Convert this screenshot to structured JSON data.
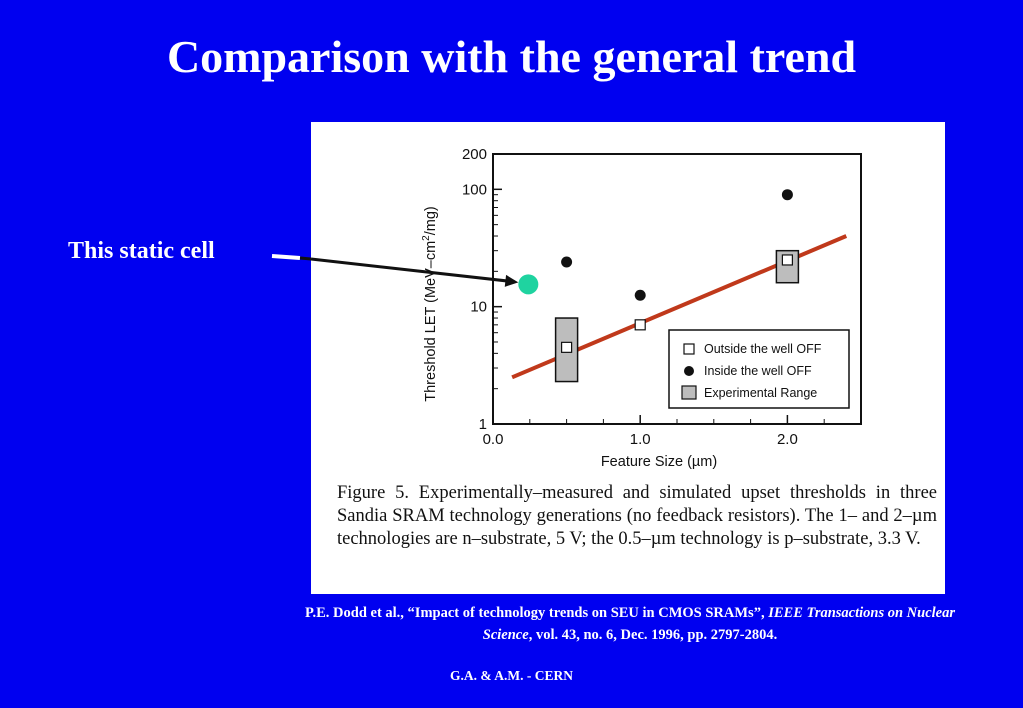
{
  "slide": {
    "title": "Comparison with the general trend",
    "annotation": "This static cell",
    "footer": "G.A. & A.M.  -  CERN"
  },
  "citation": {
    "part1": "P.E. Dodd et al., “Impact of technology trends on SEU in CMOS SRAMs”, ",
    "journal": "IEEE Transactions on Nuclear Science",
    "part2": ", vol. 43, no. 6, Dec. 1996, pp. 2797-2804."
  },
  "caption": "Figure 5. Experimentally–measured and simulated upset thresholds in three Sandia SRAM technology generations (no feedback resistors). The 1– and 2–µm technologies are n–substrate, 5 V; the 0.5–µm technology is p–substrate, 3.3 V.",
  "colors": {
    "background": "#0000f0",
    "trend_line": "#c0391b",
    "highlight_point": "#1fd3a0",
    "range_fill": "#bdbdbd"
  },
  "chart_data": {
    "type": "scatter",
    "xlabel": "Feature Size (µm)",
    "ylabel_main": "Threshold LET (MeV–cm",
    "ylabel_sup": "2",
    "ylabel_end": "/mg)",
    "xlim": [
      0.0,
      2.5
    ],
    "ylim": [
      1,
      200
    ],
    "yscale": "log",
    "x_ticks": [
      {
        "value": 0.0,
        "label": "0.0"
      },
      {
        "value": 1.0,
        "label": "1.0"
      },
      {
        "value": 2.0,
        "label": "2.0"
      }
    ],
    "y_ticks": [
      {
        "value": 1,
        "label": "1"
      },
      {
        "value": 10,
        "label": "10"
      },
      {
        "value": 100,
        "label": "100"
      },
      {
        "value": 200,
        "label": "200"
      }
    ],
    "series": [
      {
        "name": "Outside the well OFF",
        "marker": "open-square",
        "x": [
          0.5,
          1.0,
          2.0
        ],
        "y": [
          4.5,
          7,
          25
        ]
      },
      {
        "name": "Inside the well OFF",
        "marker": "filled-circle",
        "x": [
          0.5,
          1.0,
          2.0
        ],
        "y": [
          24,
          12.5,
          90
        ]
      },
      {
        "name": "Experimental Range",
        "marker": "range-box",
        "x": [
          0.5,
          2.0
        ],
        "y_low": [
          2.3,
          16
        ],
        "y_high": [
          8,
          30
        ]
      }
    ],
    "trend_line": {
      "x": [
        0.13,
        2.4
      ],
      "y": [
        2.5,
        40
      ]
    },
    "highlight_point": {
      "x": 0.24,
      "y": 15.5
    },
    "legend_position": "bottom-right"
  }
}
